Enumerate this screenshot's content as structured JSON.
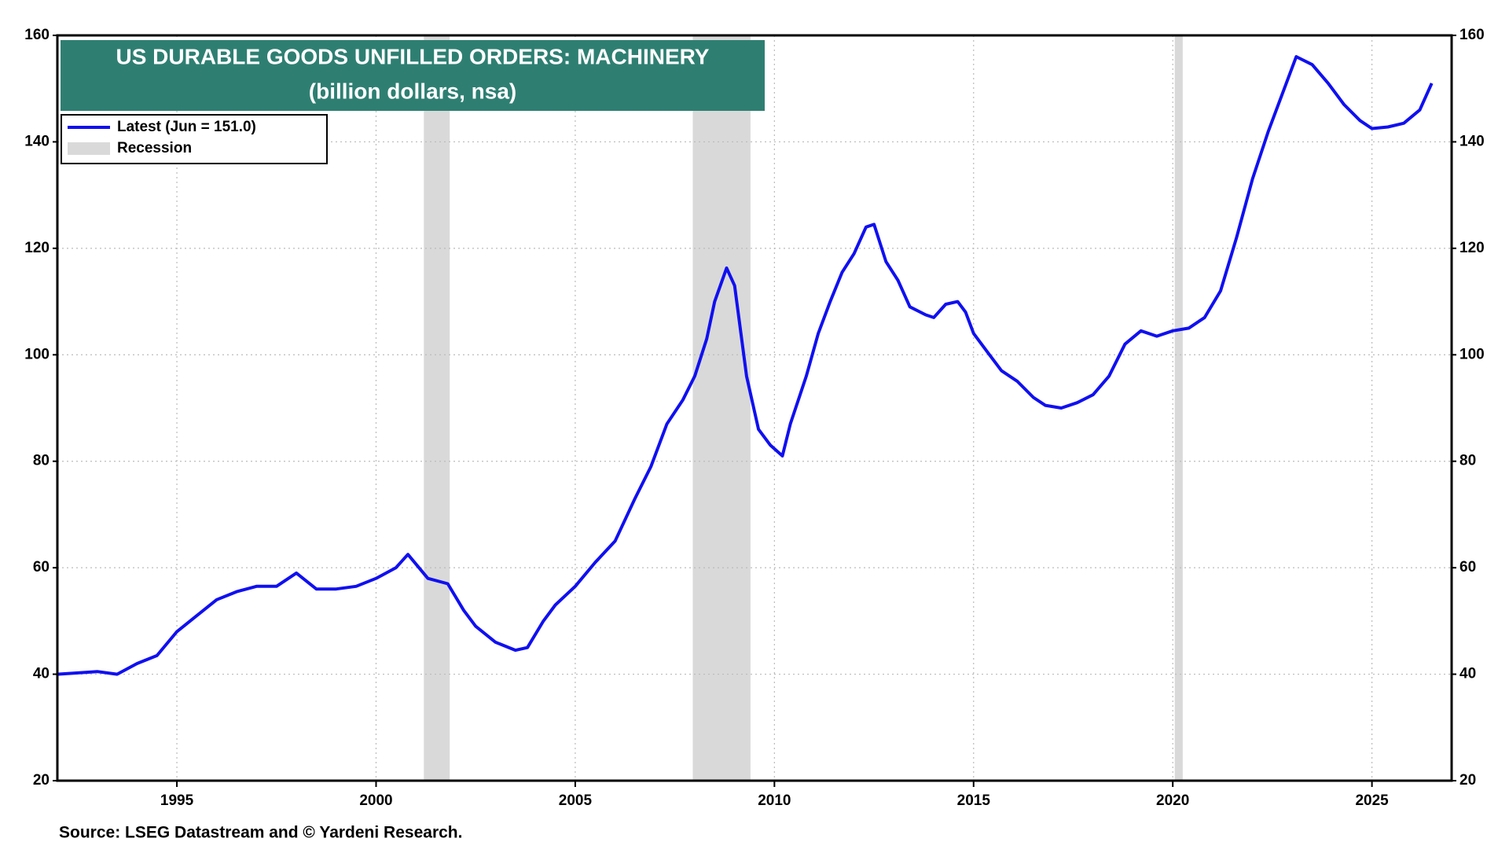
{
  "chart_data": {
    "type": "line",
    "title": "US DURABLE GOODS UNFILLED ORDERS: MACHINERY",
    "subtitle": "(billion dollars, nsa)",
    "source": "Source: LSEG Datastream and © Yardeni Research.",
    "x": [
      1992.0,
      1993.0,
      1993.5,
      1994.0,
      1994.5,
      1995.0,
      1995.5,
      1996.0,
      1996.5,
      1997.0,
      1997.5,
      1998.0,
      1998.5,
      1999.0,
      1999.5,
      2000.0,
      2000.5,
      2000.8,
      2001.3,
      2001.8,
      2002.2,
      2002.5,
      2003.0,
      2003.5,
      2003.8,
      2004.2,
      2004.5,
      2005.0,
      2005.5,
      2006.0,
      2006.5,
      2006.9,
      2007.3,
      2007.7,
      2008.0,
      2008.3,
      2008.5,
      2008.8,
      2009.0,
      2009.3,
      2009.6,
      2009.9,
      2010.2,
      2010.4,
      2010.8,
      2011.1,
      2011.4,
      2011.7,
      2012.0,
      2012.3,
      2012.5,
      2012.8,
      2013.1,
      2013.4,
      2013.8,
      2014.0,
      2014.3,
      2014.6,
      2014.8,
      2015.0,
      2015.4,
      2015.7,
      2016.1,
      2016.5,
      2016.8,
      2017.2,
      2017.6,
      2018.0,
      2018.4,
      2018.8,
      2019.2,
      2019.6,
      2020.0,
      2020.4,
      2020.8,
      2021.2,
      2021.6,
      2022.0,
      2022.4,
      2022.8,
      2023.1,
      2023.5,
      2023.9,
      2024.3,
      2024.7,
      2025.0,
      2025.4,
      2025.8,
      2026.2,
      2026.5
    ],
    "series": [
      {
        "name": "Latest (Jun = 151.0)",
        "color": "#1010f0",
        "values": [
          40,
          40.5,
          40,
          42,
          43.5,
          48,
          51,
          54,
          55.5,
          56.5,
          56.5,
          59,
          56,
          56,
          56.5,
          58,
          60,
          62.5,
          58,
          57,
          52,
          49,
          46,
          44.5,
          45,
          50,
          53,
          56.5,
          61,
          65,
          73,
          79,
          87,
          91.5,
          96,
          103,
          110,
          116.3,
          113,
          96,
          86,
          83,
          81,
          87,
          96,
          104,
          110,
          115.5,
          119,
          124,
          124.5,
          117.5,
          114,
          109,
          107.5,
          107,
          109.5,
          110,
          108,
          104,
          100,
          97,
          95,
          92,
          90.5,
          90,
          91,
          92.5,
          96,
          102,
          104.5,
          103.5,
          104.5,
          105,
          107,
          112,
          122,
          133,
          142,
          150,
          156,
          154.5,
          151,
          147,
          144,
          142.5,
          142.8,
          143.5,
          146,
          151
        ]
      }
    ],
    "recession_legend": "Recession",
    "recessions": [
      [
        2001.2,
        2001.85
      ],
      [
        2007.95,
        2009.4
      ],
      [
        2020.05,
        2020.25
      ]
    ],
    "xlim": [
      1992,
      2027
    ],
    "xticks": [
      1995,
      2000,
      2005,
      2010,
      2015,
      2020,
      2025
    ],
    "ylim": [
      20,
      160
    ],
    "yticks": [
      20,
      40,
      60,
      80,
      100,
      120,
      140,
      160
    ],
    "grid": true
  }
}
